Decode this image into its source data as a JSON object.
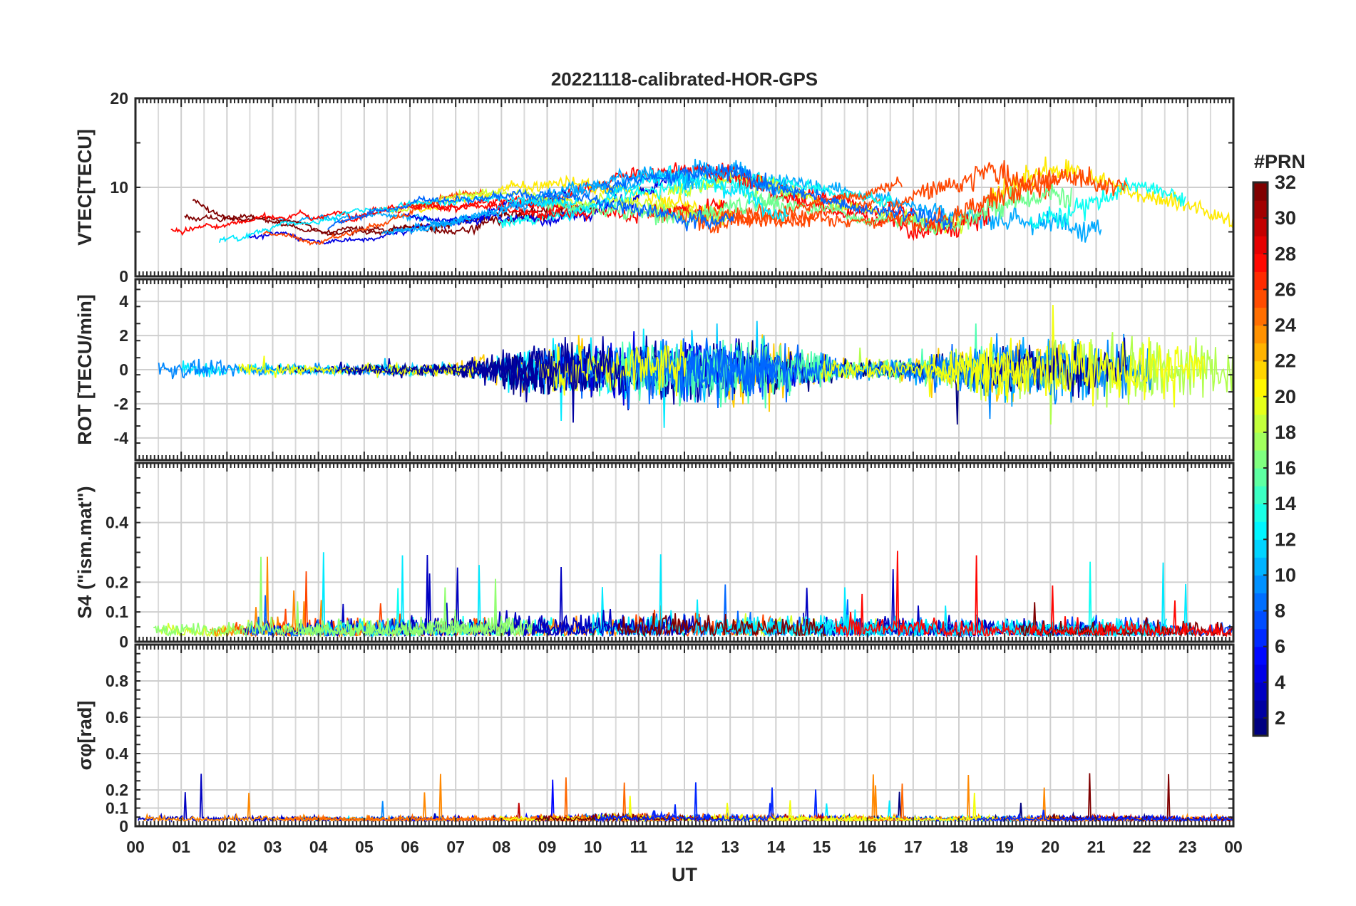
{
  "chart_data": {
    "type": "line",
    "title": "20221118-calibrated-HOR-GPS",
    "xlabel": "UT",
    "x_ticks": [
      "00",
      "01",
      "02",
      "03",
      "04",
      "05",
      "06",
      "07",
      "08",
      "09",
      "10",
      "11",
      "12",
      "13",
      "14",
      "15",
      "16",
      "17",
      "18",
      "19",
      "20",
      "21",
      "22",
      "23",
      "00"
    ],
    "xlim": [
      0,
      24
    ],
    "grid": true,
    "colorbar": {
      "title": "#PRN",
      "range": [
        1,
        32
      ],
      "ticks": [
        "2",
        "4",
        "6",
        "8",
        "10",
        "12",
        "14",
        "16",
        "18",
        "20",
        "22",
        "24",
        "26",
        "28",
        "30",
        "32"
      ],
      "colormap": "jet"
    },
    "panels": [
      {
        "id": "vtec",
        "ylabel": "VTEC[TECU]",
        "ylim": [
          0,
          20
        ],
        "yticks": [
          "0",
          "10",
          "20"
        ],
        "yminor": 5,
        "envelope": [
          {
            "hour": 0,
            "base": 6,
            "spread": 2.5,
            "noise": 0.5
          },
          {
            "hour": 4,
            "base": 5.5,
            "spread": 2,
            "noise": 0.3
          },
          {
            "hour": 8,
            "base": 8,
            "spread": 2,
            "noise": 0.8
          },
          {
            "hour": 11,
            "base": 9,
            "spread": 3,
            "noise": 1.5
          },
          {
            "hour": 13,
            "base": 9,
            "spread": 3,
            "noise": 2
          },
          {
            "hour": 16,
            "base": 8,
            "spread": 2,
            "noise": 1
          },
          {
            "hour": 19,
            "base": 9,
            "spread": 4,
            "noise": 3
          },
          {
            "hour": 21,
            "base": 8,
            "spread": 3,
            "noise": 2
          },
          {
            "hour": 24,
            "base": 7,
            "spread": 2,
            "noise": 1.5
          }
        ]
      },
      {
        "id": "rot",
        "ylabel": "ROT [TECU/min]",
        "ylim": [
          -5.3,
          5.3
        ],
        "yticks": [
          "-4",
          "-2",
          "0",
          "2",
          "4"
        ],
        "yminor": 1,
        "envelope": [
          {
            "hour": 0,
            "amp": 0.6
          },
          {
            "hour": 3,
            "amp": 0.25
          },
          {
            "hour": 7,
            "amp": 0.3
          },
          {
            "hour": 8.5,
            "amp": 1.2
          },
          {
            "hour": 11,
            "amp": 1.6
          },
          {
            "hour": 13.5,
            "amp": 1.8
          },
          {
            "hour": 15.5,
            "amp": 0.5
          },
          {
            "hour": 17,
            "amp": 0.6
          },
          {
            "hour": 19,
            "amp": 1.5
          },
          {
            "hour": 22,
            "amp": 1.6
          },
          {
            "hour": 24,
            "amp": 1.5
          }
        ]
      },
      {
        "id": "s4",
        "ylabel": "S4 (\"ism.mat\")",
        "ylim": [
          0,
          0.6
        ],
        "yticks": [
          "0",
          "0.1",
          "0.2",
          "0.4"
        ],
        "yminor": 0.05,
        "envelope": [
          {
            "hour": 0,
            "amp": 0.08
          },
          {
            "hour": 6,
            "amp": 0.1
          },
          {
            "hour": 9,
            "amp": 0.12
          },
          {
            "hour": 12.5,
            "amp": 0.12
          },
          {
            "hour": 18,
            "amp": 0.1
          },
          {
            "hour": 24,
            "amp": 0.08
          }
        ]
      },
      {
        "id": "sigma",
        "ylabel": "σφ[rad]",
        "ylim": [
          0,
          1
        ],
        "yticks": [
          "0",
          "0.1",
          "0.2",
          "0.4",
          "0.6",
          "0.8"
        ],
        "yminor": 0.05,
        "envelope": [
          {
            "hour": 0,
            "amp": 0.06
          },
          {
            "hour": 8.5,
            "amp": 0.05
          },
          {
            "hour": 10,
            "amp": 0.08
          },
          {
            "hour": 13,
            "amp": 0.07
          },
          {
            "hour": 17,
            "amp": 0.05
          },
          {
            "hour": 21,
            "amp": 0.06
          },
          {
            "hour": 24,
            "amp": 0.05
          }
        ]
      }
    ]
  }
}
